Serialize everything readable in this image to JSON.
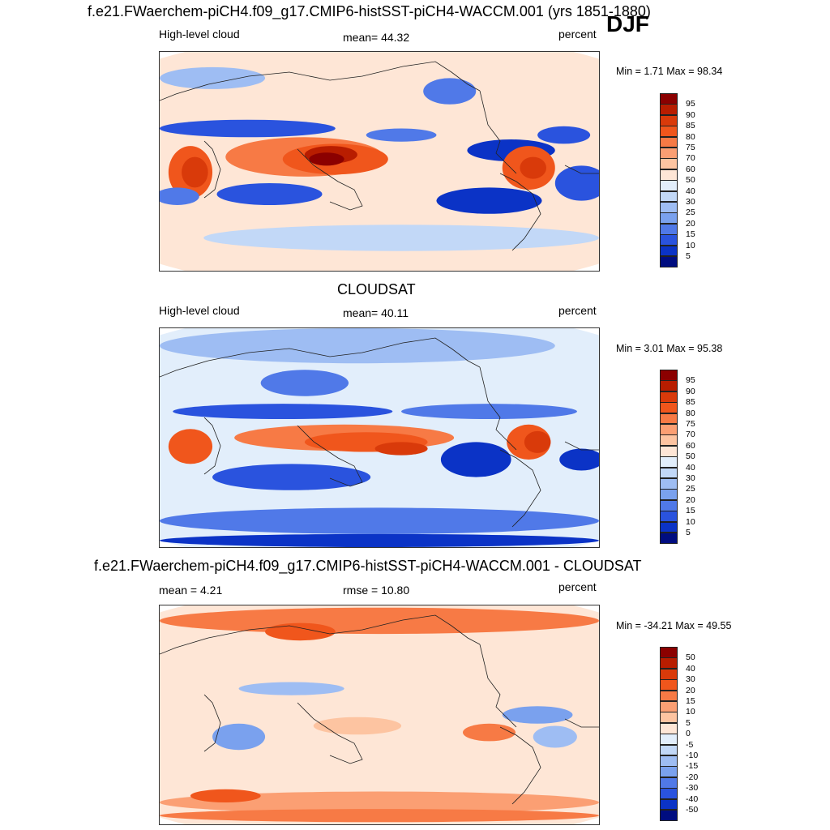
{
  "season": "DJF",
  "panels": [
    {
      "title": "f.e21.FWaerchem-piCH4.f09_g17.CMIP6-histSST-piCH4-WACCM.001 (yrs 1851-1880)",
      "left_label": "High-level cloud",
      "center_label": "mean=  44.32",
      "right_label": "percent",
      "minmax": "Min =   1.71 Max =  98.34",
      "colorbar": {
        "ticks": [
          "95",
          "90",
          "85",
          "80",
          "75",
          "70",
          "60",
          "50",
          "40",
          "30",
          "25",
          "20",
          "15",
          "10",
          "5"
        ],
        "colors": [
          "#8b0000",
          "#b81d00",
          "#d93a0a",
          "#f0561c",
          "#f77a45",
          "#fb9f73",
          "#fdc4a1",
          "#fee6d6",
          "#e2eefb",
          "#c2d8f7",
          "#9ebdf3",
          "#7aa1ee",
          "#5079e8",
          "#2a53de",
          "#0b33c6",
          "#000d80"
        ]
      },
      "map_theme": "model"
    },
    {
      "title": "CLOUDSAT",
      "left_label": "High-level cloud",
      "center_label": "mean=  40.11",
      "right_label": "percent",
      "minmax": "Min =   3.01 Max =  95.38",
      "colorbar": {
        "ticks": [
          "95",
          "90",
          "85",
          "80",
          "75",
          "70",
          "60",
          "50",
          "40",
          "30",
          "25",
          "20",
          "15",
          "10",
          "5"
        ],
        "colors": [
          "#8b0000",
          "#b81d00",
          "#d93a0a",
          "#f0561c",
          "#f77a45",
          "#fb9f73",
          "#fdc4a1",
          "#fee6d6",
          "#e2eefb",
          "#c2d8f7",
          "#9ebdf3",
          "#7aa1ee",
          "#5079e8",
          "#2a53de",
          "#0b33c6",
          "#000d80"
        ]
      },
      "map_theme": "obs"
    },
    {
      "title": "f.e21.FWaerchem-piCH4.f09_g17.CMIP6-histSST-piCH4-WACCM.001 - CLOUDSAT",
      "left_label": "mean =   4.21",
      "center_label": "rmse =  10.80",
      "right_label": "percent",
      "minmax": "Min = -34.21 Max =  49.55",
      "colorbar": {
        "ticks": [
          "50",
          "40",
          "30",
          "20",
          "15",
          "10",
          "5",
          "0",
          "-5",
          "-10",
          "-15",
          "-20",
          "-30",
          "-40",
          "-50"
        ],
        "colors": [
          "#8b0000",
          "#b81d00",
          "#d93a0a",
          "#f0561c",
          "#f77a45",
          "#fb9f73",
          "#fdc4a1",
          "#fee6d6",
          "#e2eefb",
          "#c2d8f7",
          "#9ebdf3",
          "#7aa1ee",
          "#5079e8",
          "#2a53de",
          "#0b33c6",
          "#000d80"
        ]
      },
      "map_theme": "diff"
    }
  ]
}
